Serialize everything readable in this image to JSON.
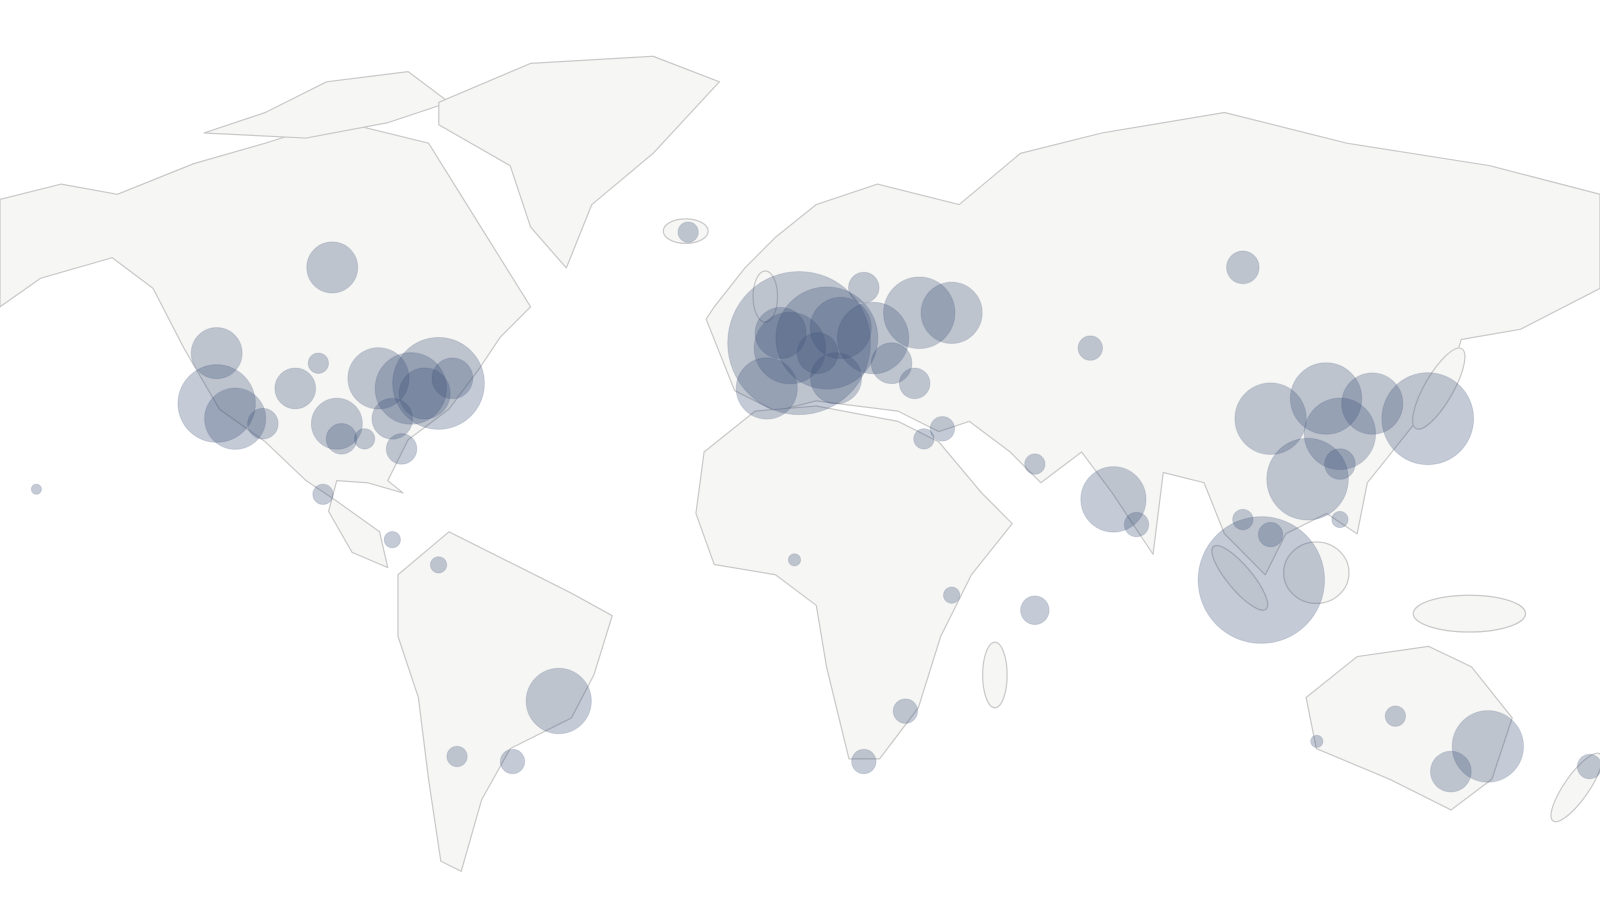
{
  "map": {
    "bubbles": [
      {
        "lon": 4,
        "lat": 49,
        "size": 70
      },
      {
        "lon": 10,
        "lat": 50,
        "size": 50
      },
      {
        "lon": 2,
        "lat": 48,
        "size": 35
      },
      {
        "lon": -3,
        "lat": 40,
        "size": 30
      },
      {
        "lon": 13,
        "lat": 52,
        "size": 30
      },
      {
        "lon": 20,
        "lat": 50,
        "size": 35
      },
      {
        "lon": 30,
        "lat": 55,
        "size": 35
      },
      {
        "lon": 37,
        "lat": 55,
        "size": 30
      },
      {
        "lon": 12,
        "lat": 42,
        "size": 25
      },
      {
        "lon": 0,
        "lat": 51,
        "size": 25
      },
      {
        "lon": 8,
        "lat": 47,
        "size": 20
      },
      {
        "lon": 24,
        "lat": 45,
        "size": 20
      },
      {
        "lon": 18,
        "lat": 60,
        "size": 15
      },
      {
        "lon": -20,
        "lat": 71,
        "size": 10
      },
      {
        "lon": -122,
        "lat": 37,
        "size": 38
      },
      {
        "lon": -122,
        "lat": 47,
        "size": 25
      },
      {
        "lon": -118,
        "lat": 34,
        "size": 30
      },
      {
        "lon": -87,
        "lat": 42,
        "size": 30
      },
      {
        "lon": -80,
        "lat": 40,
        "size": 35
      },
      {
        "lon": -74,
        "lat": 41,
        "size": 45
      },
      {
        "lon": -96,
        "lat": 33,
        "size": 25
      },
      {
        "lon": -95,
        "lat": 30,
        "size": 15
      },
      {
        "lon": -82,
        "lat": 28,
        "size": 15
      },
      {
        "lon": -84,
        "lat": 34,
        "size": 20
      },
      {
        "lon": -105,
        "lat": 40,
        "size": 20
      },
      {
        "lon": -112,
        "lat": 33,
        "size": 15
      },
      {
        "lon": -100,
        "lat": 45,
        "size": 10
      },
      {
        "lon": -77,
        "lat": 39,
        "size": 25
      },
      {
        "lon": -71,
        "lat": 42,
        "size": 20
      },
      {
        "lon": -90,
        "lat": 30,
        "size": 10
      },
      {
        "lon": -97,
        "lat": 64,
        "size": 25
      },
      {
        "lon": -161,
        "lat": 20,
        "size": 5
      },
      {
        "lon": -99,
        "lat": 19,
        "size": 10
      },
      {
        "lon": -84,
        "lat": 10,
        "size": 8
      },
      {
        "lon": -74,
        "lat": 5,
        "size": 8
      },
      {
        "lon": -48,
        "lat": -22,
        "size": 32
      },
      {
        "lon": -58,
        "lat": -34,
        "size": 12
      },
      {
        "lon": -70,
        "lat": -33,
        "size": 10
      },
      {
        "lon": 27,
        "lat": -24,
        "size": 12
      },
      {
        "lon": 18,
        "lat": -34,
        "size": 12
      },
      {
        "lon": 37,
        "lat": -1,
        "size": 8
      },
      {
        "lon": 3,
        "lat": 6,
        "size": 6
      },
      {
        "lon": 31,
        "lat": 30,
        "size": 10
      },
      {
        "lon": 55,
        "lat": 25,
        "size": 10
      },
      {
        "lon": 35,
        "lat": 32,
        "size": 12
      },
      {
        "lon": 29,
        "lat": 41,
        "size": 15
      },
      {
        "lon": 55,
        "lat": -4,
        "size": 14
      },
      {
        "lon": 72,
        "lat": 18,
        "size": 32
      },
      {
        "lon": 77,
        "lat": 13,
        "size": 12
      },
      {
        "lon": 67,
        "lat": 48,
        "size": 12
      },
      {
        "lon": 100,
        "lat": 64,
        "size": 16
      },
      {
        "lon": 104,
        "lat": 2,
        "size": 62
      },
      {
        "lon": 118,
        "lat": 38,
        "size": 35
      },
      {
        "lon": 106,
        "lat": 34,
        "size": 35
      },
      {
        "lon": 121,
        "lat": 31,
        "size": 35
      },
      {
        "lon": 114,
        "lat": 22,
        "size": 40
      },
      {
        "lon": 128,
        "lat": 37,
        "size": 30
      },
      {
        "lon": 140,
        "lat": 34,
        "size": 45
      },
      {
        "lon": 121,
        "lat": 25,
        "size": 15
      },
      {
        "lon": 121,
        "lat": 14,
        "size": 8
      },
      {
        "lon": 100,
        "lat": 14,
        "size": 10
      },
      {
        "lon": 106,
        "lat": 11,
        "size": 12
      },
      {
        "lon": 153,
        "lat": -31,
        "size": 35
      },
      {
        "lon": 145,
        "lat": -36,
        "size": 20
      },
      {
        "lon": 116,
        "lat": -30,
        "size": 6
      },
      {
        "lon": 133,
        "lat": -25,
        "size": 10
      },
      {
        "lon": 175,
        "lat": -35,
        "size": 12
      }
    ]
  }
}
